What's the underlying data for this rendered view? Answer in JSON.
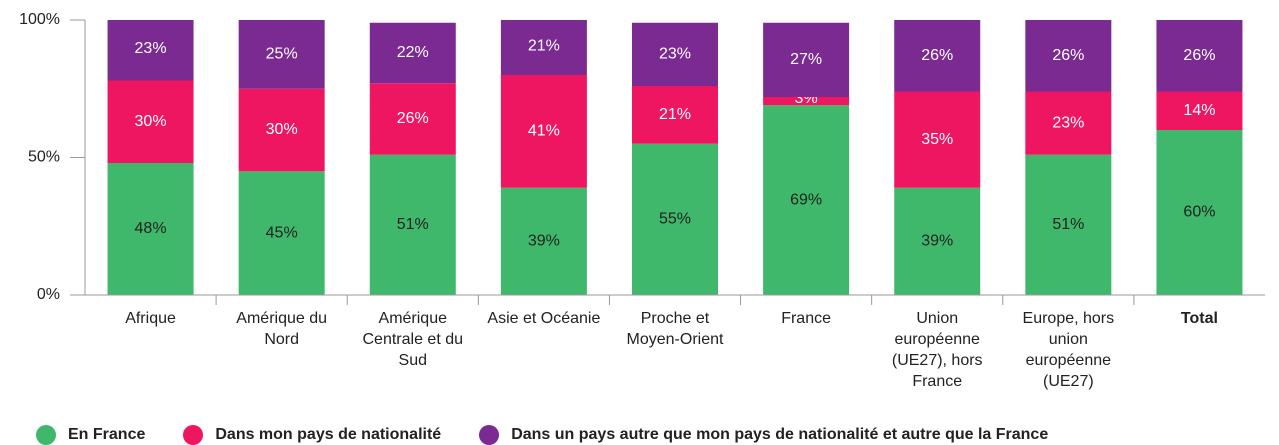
{
  "chart_data": {
    "type": "stacked_bar",
    "categories": [
      "Afrique",
      "Amérique du Nord",
      "Amérique Centrale et du Sud",
      "Asie et Océanie",
      "Proche et Moyen-Orient",
      "France",
      "Union européenne (UE27), hors France",
      "Europe, hors union européenne (UE27)",
      "Total"
    ],
    "series": [
      {
        "name": "En France",
        "color": "#3fb86b",
        "values": [
          48,
          45,
          51,
          39,
          55,
          69,
          39,
          51,
          60
        ],
        "value_labels": [
          "48%",
          "45%",
          "51%",
          "39%",
          "55%",
          "69%",
          "39%",
          "51%",
          "60%"
        ]
      },
      {
        "name": "Dans mon pays de nationalité",
        "color": "#ee1660",
        "values": [
          30,
          30,
          26,
          41,
          21,
          3,
          35,
          23,
          14
        ],
        "value_labels": [
          "30%",
          "30%",
          "26%",
          "41%",
          "21%",
          "3%",
          "35%",
          "23%",
          "14%"
        ]
      },
      {
        "name": "Dans un pays autre que mon pays de nationalité et autre que la France",
        "color": "#7b2a92",
        "values": [
          23,
          25,
          22,
          21,
          23,
          27,
          26,
          26,
          26
        ],
        "value_labels": [
          "23%",
          "25%",
          "22%",
          "21%",
          "23%",
          "27%",
          "26%",
          "26%",
          "26%"
        ]
      }
    ],
    "ylim": [
      0,
      100
    ],
    "yticks": [
      {
        "value": 0,
        "label": "0%"
      },
      {
        "value": 50,
        "label": "50%"
      },
      {
        "value": 100,
        "label": "100%"
      }
    ],
    "legend": "bottom"
  }
}
